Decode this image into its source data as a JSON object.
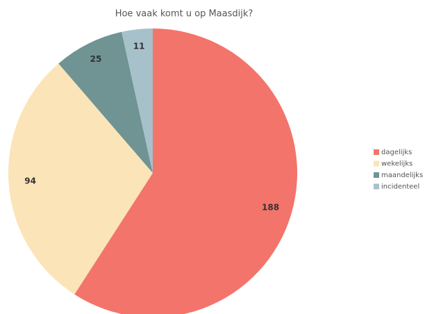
{
  "chart_data": {
    "type": "pie",
    "title": "Hoe vaak komt u op Maasdijk?",
    "categories": [
      "dagelijks",
      "wekelijks",
      "maandelijks",
      "incidenteel"
    ],
    "values": [
      188,
      94,
      25,
      11
    ],
    "colors": [
      "#f3746b",
      "#fbe4b7",
      "#6f9493",
      "#a7c1cb"
    ],
    "legend": "right"
  }
}
